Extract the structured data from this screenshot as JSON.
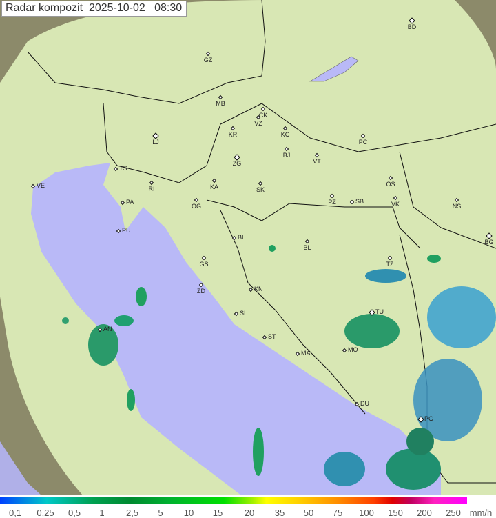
{
  "title": {
    "label": "Radar kompozit",
    "date": "2025-10-02",
    "time": "08:30"
  },
  "legend": {
    "unit": "mm/h",
    "ticks": [
      "0,1",
      "0,25",
      "0,5",
      "1",
      "2,5",
      "5",
      "10",
      "15",
      "20",
      "35",
      "50",
      "75",
      "100",
      "150",
      "200",
      "250"
    ],
    "colors": [
      "#0040ff",
      "#00c8c8",
      "#00a050",
      "#00e000",
      "#ffff00",
      "#ff9000",
      "#e00000",
      "#ff00ff"
    ]
  },
  "colors": {
    "sea": "#b8b8f8",
    "coverage": "#d8ecb0",
    "terrain": "#9a9a78",
    "rain_light": "#20a060",
    "rain_mid": "#2080c0"
  },
  "cities": [
    "BD",
    "GZ",
    "MB",
    "CK",
    "VZ",
    "KR",
    "KC",
    "LJ",
    "BJ",
    "PC",
    "TS",
    "ZG",
    "VT",
    "KA",
    "SK",
    "OS",
    "RI",
    "VE",
    "PA",
    "OG",
    "PZ",
    "SB",
    "VK",
    "NS",
    "PU",
    "BI",
    "BL",
    "BG",
    "GS",
    "TZ",
    "ZD",
    "KN",
    "SI",
    "TU",
    "AN",
    "ST",
    "MO",
    "MA",
    "DU",
    "PG"
  ]
}
